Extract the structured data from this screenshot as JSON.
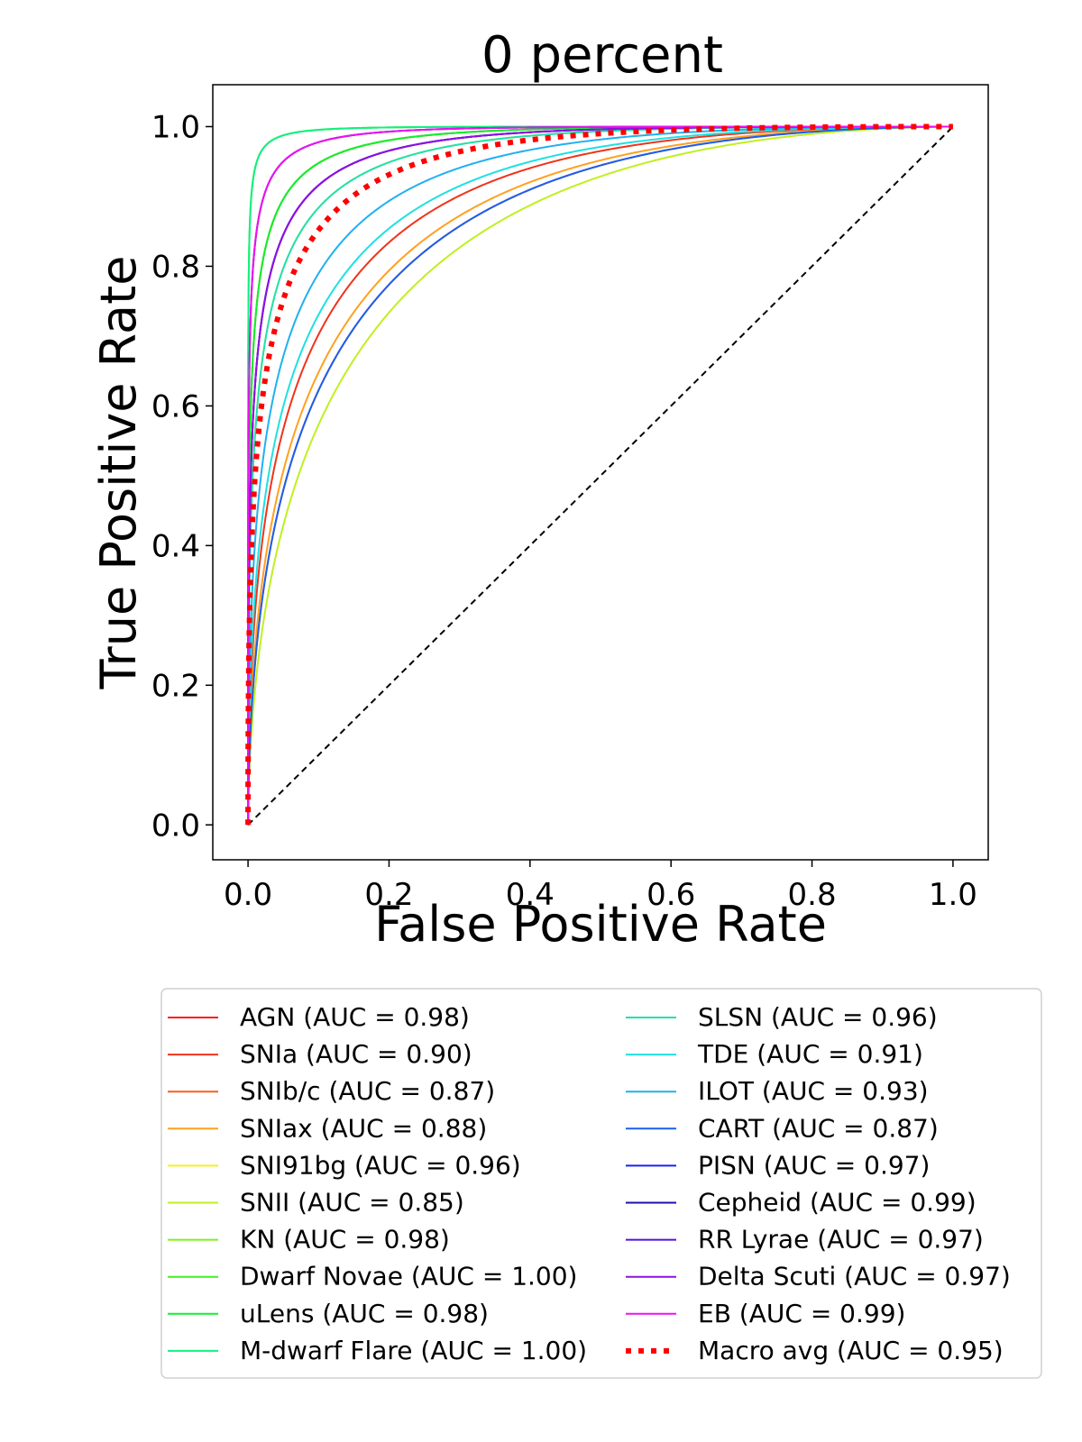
{
  "chart_data": {
    "type": "line",
    "title": "0 percent",
    "xlabel": "False Positive Rate",
    "ylabel": "True Positive Rate",
    "xlim": [
      -0.05,
      1.05
    ],
    "ylim": [
      -0.05,
      1.06
    ],
    "xticks": [
      "0.0",
      "0.2",
      "0.4",
      "0.6",
      "0.8",
      "1.0"
    ],
    "yticks": [
      "0.0",
      "0.2",
      "0.4",
      "0.6",
      "0.8",
      "1.0"
    ],
    "grid": false,
    "legend_position": "bottom",
    "chance_line": {
      "x": [
        0,
        1
      ],
      "y": [
        0,
        1
      ],
      "color": "#000000"
    },
    "series": [
      {
        "name": "AGN (AUC = 0.98)",
        "color": "#ff1a1a",
        "auc": 0.98
      },
      {
        "name": "SNIa (AUC = 0.90)",
        "color": "#f0331a",
        "auc": 0.9
      },
      {
        "name": "SNIb/c (AUC = 0.87)",
        "color": "#ff5a1a",
        "auc": 0.87
      },
      {
        "name": "SNIax (AUC = 0.88)",
        "color": "#ffa020",
        "auc": 0.88
      },
      {
        "name": "SNI91bg (AUC = 0.96)",
        "color": "#f0f020",
        "auc": 0.96
      },
      {
        "name": "SNII (AUC = 0.85)",
        "color": "#c0f020",
        "auc": 0.85
      },
      {
        "name": "KN (AUC = 0.98)",
        "color": "#80f020",
        "auc": 0.98
      },
      {
        "name": "Dwarf Novae (AUC = 1.00)",
        "color": "#40f020",
        "auc": 1.0
      },
      {
        "name": "uLens (AUC = 0.98)",
        "color": "#10f030",
        "auc": 0.98
      },
      {
        "name": "M-dwarf Flare (AUC = 1.00)",
        "color": "#10f080",
        "auc": 1.0
      },
      {
        "name": "SLSN (AUC = 0.96)",
        "color": "#20e0b0",
        "auc": 0.96
      },
      {
        "name": "TDE (AUC = 0.91)",
        "color": "#20e0e0",
        "auc": 0.91
      },
      {
        "name": "ILOT (AUC = 0.93)",
        "color": "#20b0f0",
        "auc": 0.93
      },
      {
        "name": "CART (AUC = 0.87)",
        "color": "#1a60f0",
        "auc": 0.87
      },
      {
        "name": "PISN (AUC = 0.97)",
        "color": "#1a20f0",
        "auc": 0.97
      },
      {
        "name": "Cepheid (AUC = 0.99)",
        "color": "#1a10b0",
        "auc": 0.99
      },
      {
        "name": "RR Lyrae (AUC = 0.97)",
        "color": "#5010e0",
        "auc": 0.97
      },
      {
        "name": "Delta Scuti (AUC = 0.97)",
        "color": "#9010e0",
        "auc": 0.97
      },
      {
        "name": "EB (AUC = 0.99)",
        "color": "#f010f0",
        "auc": 0.99
      },
      {
        "name": "Macro avg (AUC = 0.95)",
        "color": "#ff0000",
        "auc": 0.95,
        "style": "dotted"
      }
    ]
  }
}
